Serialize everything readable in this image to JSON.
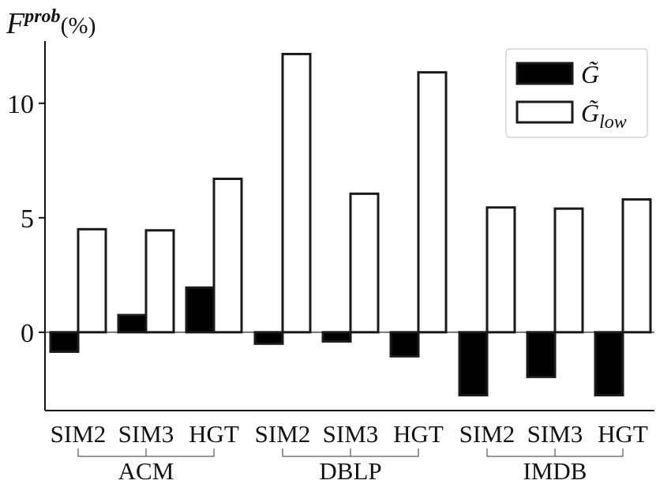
{
  "chart_data": {
    "type": "bar",
    "ylabel": {
      "main": "F",
      "sup": "prob",
      "unit": "(%)"
    },
    "ylim": [
      -3.5,
      12.8
    ],
    "yticks": [
      0,
      5,
      10
    ],
    "groups": [
      {
        "name": "ACM",
        "categories": [
          "SIM2",
          "SIM3",
          "HGT"
        ]
      },
      {
        "name": "DBLP",
        "categories": [
          "SIM2",
          "SIM3",
          "HGT"
        ]
      },
      {
        "name": "IMDB",
        "categories": [
          "SIM2",
          "SIM3",
          "HGT"
        ]
      }
    ],
    "series": [
      {
        "name": "G̃",
        "fill": "#000000",
        "values": [
          -0.85,
          0.75,
          1.95,
          -0.5,
          -0.4,
          -1.05,
          -2.75,
          -1.95,
          -2.75
        ]
      },
      {
        "name": "G̃low",
        "fill": "#ffffff",
        "values": [
          4.5,
          4.45,
          6.7,
          12.15,
          6.05,
          11.35,
          5.45,
          5.4,
          5.8
        ]
      }
    ],
    "legend": {
      "position": "top-right",
      "entries": [
        {
          "base": "G̃",
          "sub": ""
        },
        {
          "base": "G̃",
          "sub": "low"
        }
      ]
    },
    "grid": false
  }
}
